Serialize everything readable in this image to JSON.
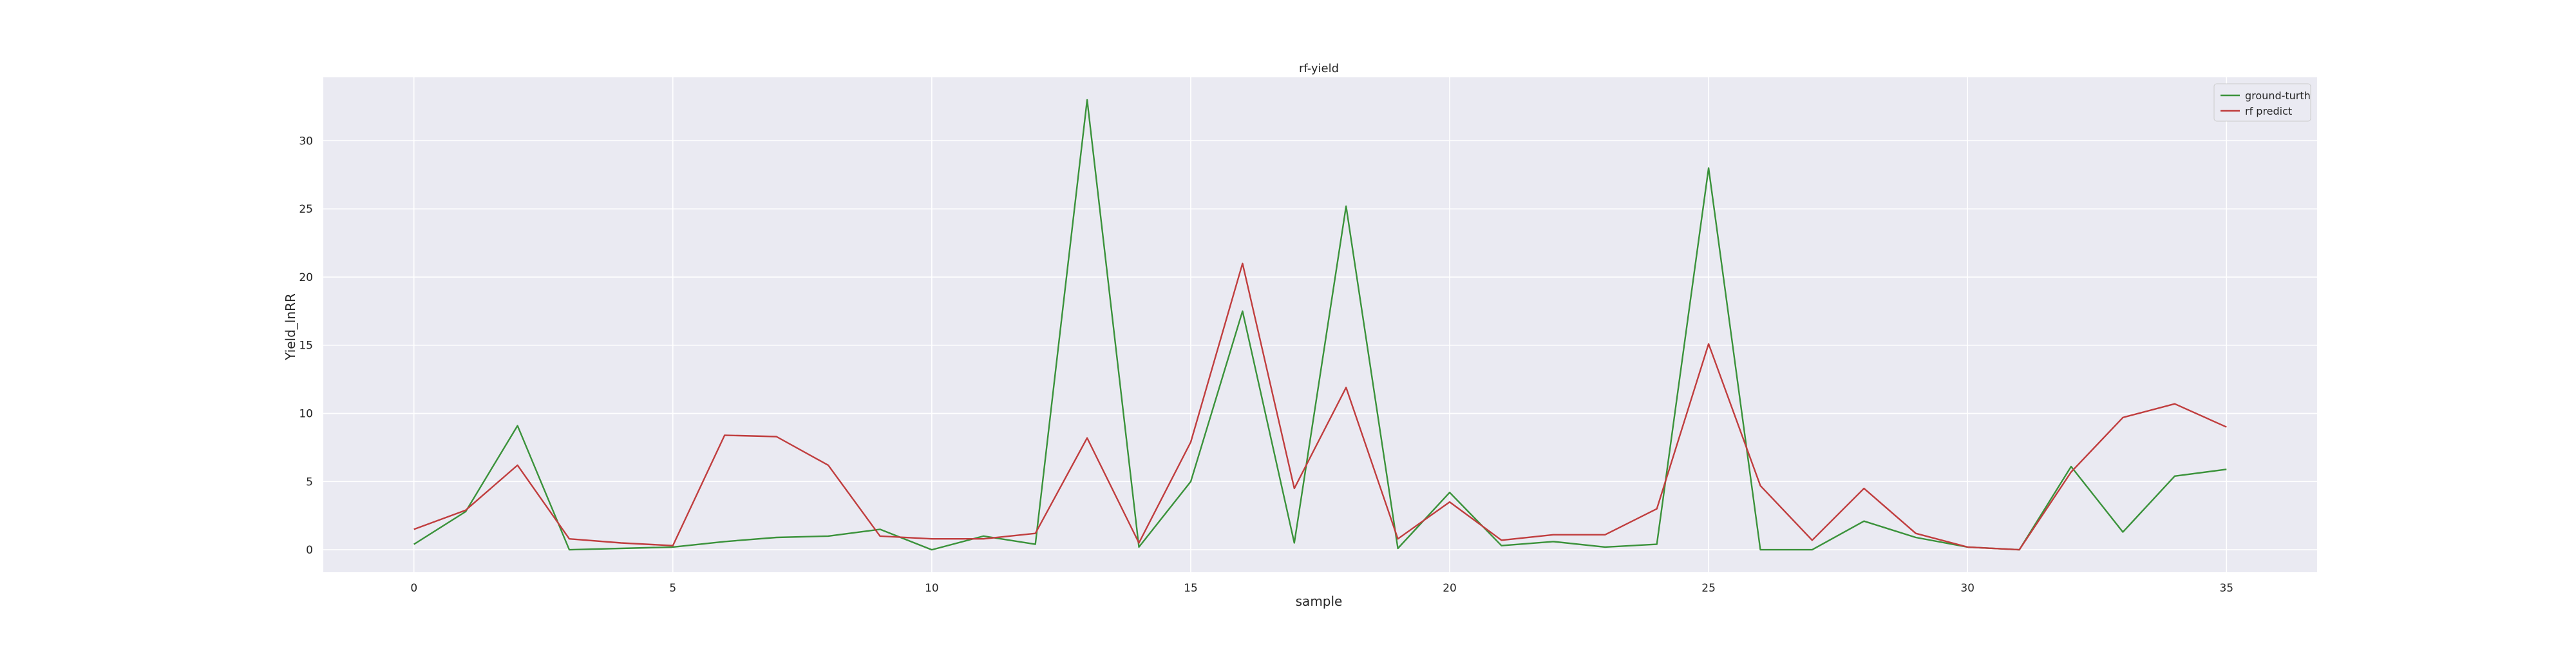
{
  "chart_data": {
    "type": "line",
    "title": "rf-yield",
    "xlabel": "sample",
    "ylabel": "Yield_lnRR",
    "xlim": [
      -1.75,
      36.75
    ],
    "ylim": [
      -1.65,
      34.65
    ],
    "x_ticks": [
      0,
      5,
      10,
      15,
      20,
      25,
      30,
      35
    ],
    "y_ticks": [
      0,
      5,
      10,
      15,
      20,
      25,
      30
    ],
    "x": [
      0,
      1,
      2,
      3,
      4,
      5,
      6,
      7,
      8,
      9,
      10,
      11,
      12,
      13,
      14,
      15,
      16,
      17,
      18,
      19,
      20,
      21,
      22,
      23,
      24,
      25,
      26,
      27,
      28,
      29,
      30,
      31,
      32,
      33,
      34,
      35
    ],
    "series": [
      {
        "name": "ground-turth",
        "color": "#3a923a",
        "values": [
          0.4,
          2.8,
          9.1,
          0.0,
          0.1,
          0.2,
          0.6,
          0.9,
          1.0,
          1.5,
          0.0,
          1.0,
          0.4,
          33.0,
          0.2,
          5.0,
          17.5,
          0.5,
          25.2,
          0.1,
          4.2,
          0.3,
          0.6,
          0.2,
          0.4,
          28.0,
          0.0,
          0.0,
          2.1,
          0.9,
          0.2,
          0.0,
          6.1,
          1.3,
          5.4,
          5.9
        ]
      },
      {
        "name": "rf predict",
        "color": "#c03d3e",
        "values": [
          1.5,
          2.9,
          6.2,
          0.8,
          0.5,
          0.3,
          8.4,
          8.3,
          6.2,
          1.0,
          0.8,
          0.8,
          1.2,
          8.2,
          0.5,
          7.9,
          21.0,
          4.5,
          11.9,
          0.8,
          3.5,
          0.7,
          1.1,
          1.1,
          3.0,
          15.1,
          4.7,
          0.7,
          4.5,
          1.2,
          0.2,
          0.0,
          5.7,
          9.7,
          10.7,
          9.0
        ]
      }
    ],
    "grid": true,
    "legend_position": "top-right"
  }
}
